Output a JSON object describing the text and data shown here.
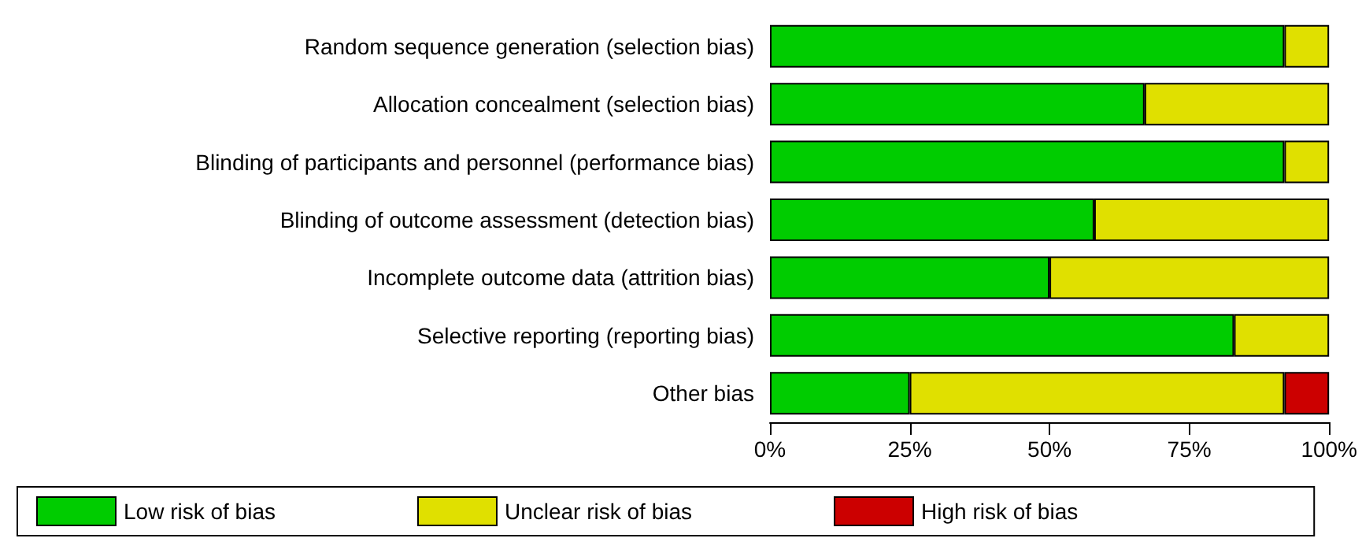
{
  "chart_data": {
    "type": "bar",
    "orientation": "horizontal",
    "stacked": true,
    "relative": false,
    "categories": [
      "Random sequence generation (selection bias)",
      "Allocation concealment (selection bias)",
      "Blinding of participants and personnel (performance bias)",
      "Blinding of outcome assessment (detection bias)",
      "Incomplete outcome data (attrition bias)",
      "Selective reporting (reporting bias)",
      "Other bias"
    ],
    "series": [
      {
        "name": "Low risk of bias",
        "color": "#00cc00",
        "values": [
          92,
          67,
          92,
          58,
          50,
          83,
          25
        ]
      },
      {
        "name": "Unclear risk of bias",
        "color": "#e0e000",
        "values": [
          8,
          33,
          8,
          42,
          50,
          17,
          67
        ]
      },
      {
        "name": "High risk of bias",
        "color": "#cc0000",
        "values": [
          0,
          0,
          0,
          0,
          0,
          0,
          8
        ]
      }
    ],
    "xlim": [
      0,
      100
    ],
    "xticks": [
      {
        "value": 0,
        "label": "0%"
      },
      {
        "value": 25,
        "label": "25%"
      },
      {
        "value": 50,
        "label": "50%"
      },
      {
        "value": 75,
        "label": "75%"
      },
      {
        "value": 100,
        "label": "100%"
      }
    ],
    "grid": false,
    "legend": "bottom"
  }
}
